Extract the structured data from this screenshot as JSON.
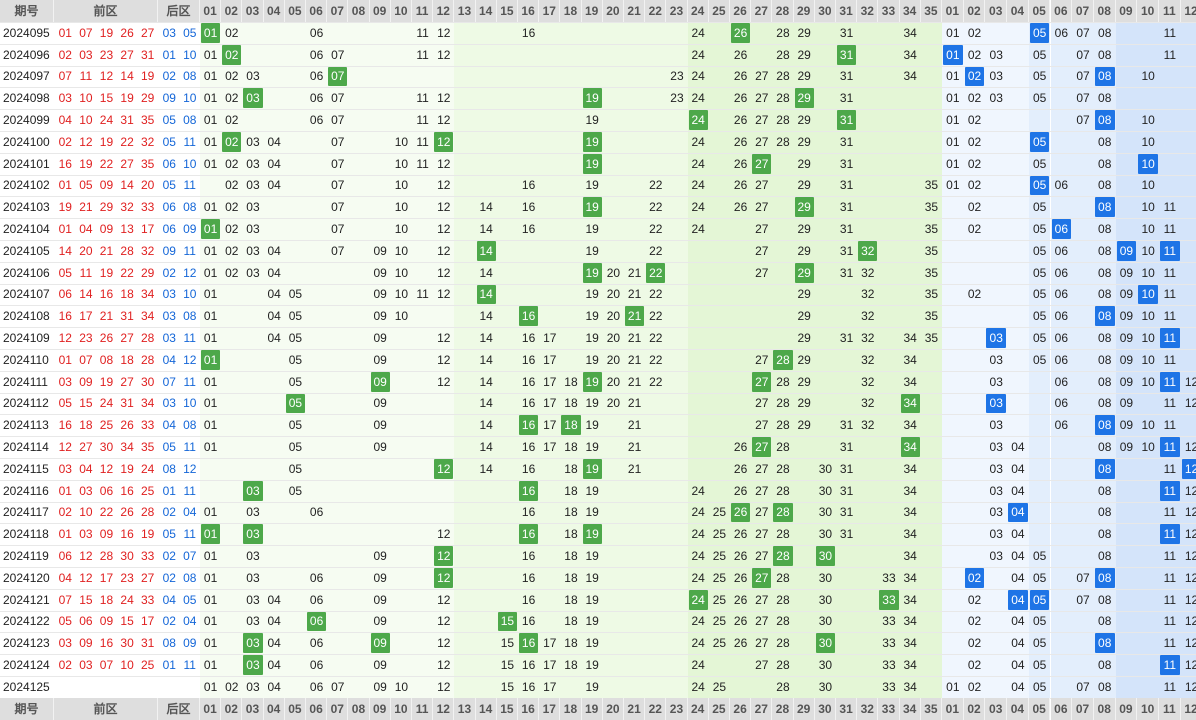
{
  "headers": {
    "period": "期号",
    "front": "前区",
    "back": "后区",
    "front_cols": [
      "01",
      "02",
      "03",
      "04",
      "05",
      "06",
      "07",
      "08",
      "09",
      "10",
      "11",
      "12",
      "13",
      "14",
      "15",
      "16",
      "17",
      "18",
      "19",
      "20",
      "21",
      "22",
      "23",
      "24",
      "25",
      "26",
      "27",
      "28",
      "29",
      "30",
      "31",
      "32",
      "33",
      "34",
      "35"
    ],
    "back_cols": [
      "01",
      "02",
      "03",
      "04",
      "05",
      "06",
      "07",
      "08",
      "09",
      "10",
      "11",
      "12"
    ]
  },
  "colors": {
    "green_mark": "#4da84a",
    "blue_mark": "#1e74e6",
    "front_ball": "#e02020",
    "back_ball": "#1466d8"
  },
  "rows": [
    {
      "period": "2024095",
      "front": [
        "01",
        "07",
        "19",
        "26",
        "27"
      ],
      "back": [
        "03",
        "05"
      ],
      "fz": [
        "01",
        "02",
        "06",
        "11",
        "12",
        "16",
        "24",
        "26",
        "28",
        "29",
        "31",
        "34"
      ],
      "fm": [
        "01",
        "26"
      ],
      "bz": [
        "01",
        "02",
        "05",
        "06",
        "07",
        "08",
        "11"
      ],
      "bm": [
        "05"
      ]
    },
    {
      "period": "2024096",
      "front": [
        "02",
        "03",
        "23",
        "27",
        "31"
      ],
      "back": [
        "01",
        "10"
      ],
      "fz": [
        "01",
        "02",
        "06",
        "07",
        "11",
        "12",
        "24",
        "26",
        "28",
        "29",
        "31",
        "34"
      ],
      "fm": [
        "02",
        "31"
      ],
      "bz": [
        "01",
        "02",
        "03",
        "05",
        "07",
        "08",
        "11"
      ],
      "bm": [
        "01"
      ]
    },
    {
      "period": "2024097",
      "front": [
        "07",
        "11",
        "12",
        "14",
        "19"
      ],
      "back": [
        "02",
        "08"
      ],
      "fz": [
        "01",
        "02",
        "03",
        "06",
        "07",
        "23",
        "24",
        "26",
        "27",
        "28",
        "29",
        "31",
        "34"
      ],
      "fm": [
        "07"
      ],
      "bz": [
        "01",
        "02",
        "03",
        "05",
        "07",
        "08",
        "10"
      ],
      "bm": [
        "02",
        "08"
      ]
    },
    {
      "period": "2024098",
      "front": [
        "03",
        "10",
        "15",
        "19",
        "29"
      ],
      "back": [
        "09",
        "10"
      ],
      "fz": [
        "01",
        "02",
        "03",
        "06",
        "07",
        "11",
        "12",
        "19",
        "23",
        "24",
        "26",
        "27",
        "28",
        "29",
        "31"
      ],
      "fm": [
        "03",
        "19",
        "29"
      ],
      "bz": [
        "01",
        "02",
        "03",
        "05",
        "07",
        "08"
      ],
      "bm": []
    },
    {
      "period": "2024099",
      "front": [
        "04",
        "10",
        "24",
        "31",
        "35"
      ],
      "back": [
        "05",
        "08"
      ],
      "fz": [
        "01",
        "02",
        "06",
        "07",
        "11",
        "12",
        "19",
        "24",
        "26",
        "27",
        "28",
        "29",
        "31"
      ],
      "fm": [
        "24",
        "31"
      ],
      "bz": [
        "01",
        "02",
        "07",
        "08",
        "10"
      ],
      "bm": [
        "08"
      ]
    },
    {
      "period": "2024100",
      "front": [
        "02",
        "12",
        "19",
        "22",
        "32"
      ],
      "back": [
        "05",
        "11"
      ],
      "fz": [
        "01",
        "02",
        "03",
        "04",
        "07",
        "10",
        "11",
        "12",
        "19",
        "24",
        "26",
        "27",
        "28",
        "29",
        "31"
      ],
      "fm": [
        "02",
        "12",
        "19"
      ],
      "bz": [
        "01",
        "02",
        "05",
        "08",
        "10"
      ],
      "bm": [
        "05"
      ]
    },
    {
      "period": "2024101",
      "front": [
        "16",
        "19",
        "22",
        "27",
        "35"
      ],
      "back": [
        "06",
        "10"
      ],
      "fz": [
        "01",
        "02",
        "03",
        "04",
        "07",
        "10",
        "11",
        "12",
        "19",
        "24",
        "26",
        "27",
        "29",
        "31"
      ],
      "fm": [
        "19",
        "27"
      ],
      "bz": [
        "01",
        "02",
        "05",
        "08",
        "10"
      ],
      "bm": [
        "10"
      ]
    },
    {
      "period": "2024102",
      "front": [
        "01",
        "05",
        "09",
        "14",
        "20"
      ],
      "back": [
        "05",
        "11"
      ],
      "fz": [
        "02",
        "03",
        "04",
        "07",
        "10",
        "12",
        "16",
        "19",
        "22",
        "24",
        "26",
        "27",
        "29",
        "31",
        "35"
      ],
      "fm": [],
      "bz": [
        "01",
        "02",
        "05",
        "06",
        "08",
        "10"
      ],
      "bm": [
        "05"
      ]
    },
    {
      "period": "2024103",
      "front": [
        "19",
        "21",
        "29",
        "32",
        "33"
      ],
      "back": [
        "06",
        "08"
      ],
      "fz": [
        "01",
        "02",
        "03",
        "07",
        "10",
        "12",
        "14",
        "16",
        "19",
        "22",
        "24",
        "26",
        "27",
        "29",
        "31",
        "35"
      ],
      "fm": [
        "19",
        "29"
      ],
      "bz": [
        "02",
        "05",
        "08",
        "10",
        "11"
      ],
      "bm": [
        "08"
      ]
    },
    {
      "period": "2024104",
      "front": [
        "01",
        "04",
        "09",
        "13",
        "17"
      ],
      "back": [
        "06",
        "09"
      ],
      "fz": [
        "01",
        "02",
        "03",
        "07",
        "10",
        "12",
        "14",
        "16",
        "19",
        "22",
        "24",
        "27",
        "29",
        "31",
        "35"
      ],
      "fm": [
        "01"
      ],
      "bz": [
        "02",
        "05",
        "06",
        "08",
        "10",
        "11"
      ],
      "bm": [
        "06"
      ]
    },
    {
      "period": "2024105",
      "front": [
        "14",
        "20",
        "21",
        "28",
        "32"
      ],
      "back": [
        "09",
        "11"
      ],
      "fz": [
        "01",
        "02",
        "03",
        "04",
        "07",
        "09",
        "10",
        "12",
        "14",
        "19",
        "22",
        "27",
        "29",
        "31",
        "32",
        "35"
      ],
      "fm": [
        "14",
        "32"
      ],
      "bz": [
        "05",
        "06",
        "08",
        "09",
        "10",
        "11"
      ],
      "bm": [
        "09",
        "11"
      ]
    },
    {
      "period": "2024106",
      "front": [
        "05",
        "11",
        "19",
        "22",
        "29"
      ],
      "back": [
        "02",
        "12"
      ],
      "fz": [
        "01",
        "02",
        "03",
        "04",
        "09",
        "10",
        "12",
        "14",
        "19",
        "20",
        "21",
        "22",
        "27",
        "29",
        "31",
        "32",
        "35"
      ],
      "fm": [
        "19",
        "22",
        "29"
      ],
      "bz": [
        "05",
        "06",
        "08",
        "09",
        "10",
        "11"
      ],
      "bm": []
    },
    {
      "period": "2024107",
      "front": [
        "06",
        "14",
        "16",
        "18",
        "34"
      ],
      "back": [
        "03",
        "10"
      ],
      "fz": [
        "01",
        "04",
        "05",
        "09",
        "10",
        "11",
        "12",
        "14",
        "19",
        "20",
        "21",
        "22",
        "29",
        "32",
        "35"
      ],
      "fm": [
        "14"
      ],
      "bz": [
        "02",
        "05",
        "06",
        "08",
        "09",
        "10",
        "11"
      ],
      "bm": [
        "10"
      ]
    },
    {
      "period": "2024108",
      "front": [
        "16",
        "17",
        "21",
        "31",
        "34"
      ],
      "back": [
        "03",
        "08"
      ],
      "fz": [
        "01",
        "04",
        "05",
        "09",
        "10",
        "14",
        "16",
        "19",
        "20",
        "21",
        "22",
        "29",
        "32",
        "35"
      ],
      "fm": [
        "16",
        "21"
      ],
      "bz": [
        "05",
        "06",
        "08",
        "09",
        "10",
        "11"
      ],
      "bm": [
        "08"
      ]
    },
    {
      "period": "2024109",
      "front": [
        "12",
        "23",
        "26",
        "27",
        "28"
      ],
      "back": [
        "03",
        "11"
      ],
      "fz": [
        "01",
        "04",
        "05",
        "09",
        "12",
        "14",
        "16",
        "17",
        "19",
        "20",
        "21",
        "22",
        "29",
        "31",
        "32",
        "34",
        "35"
      ],
      "fm": [],
      "bz": [
        "03",
        "05",
        "06",
        "08",
        "09",
        "10",
        "11"
      ],
      "bm": [
        "03",
        "11"
      ]
    },
    {
      "period": "2024110",
      "front": [
        "01",
        "07",
        "08",
        "18",
        "28"
      ],
      "back": [
        "04",
        "12"
      ],
      "fz": [
        "01",
        "05",
        "09",
        "12",
        "14",
        "16",
        "17",
        "19",
        "20",
        "21",
        "22",
        "27",
        "28",
        "29",
        "32",
        "34"
      ],
      "fm": [
        "01",
        "28"
      ],
      "bz": [
        "03",
        "05",
        "06",
        "08",
        "09",
        "10",
        "11"
      ],
      "bm": []
    },
    {
      "period": "2024111",
      "front": [
        "03",
        "09",
        "19",
        "27",
        "30"
      ],
      "back": [
        "07",
        "11"
      ],
      "fz": [
        "01",
        "05",
        "09",
        "12",
        "14",
        "16",
        "17",
        "18",
        "19",
        "20",
        "21",
        "22",
        "27",
        "28",
        "29",
        "32",
        "34"
      ],
      "fm": [
        "09",
        "19",
        "27"
      ],
      "bz": [
        "03",
        "06",
        "08",
        "09",
        "10",
        "11",
        "12"
      ],
      "bm": [
        "11"
      ]
    },
    {
      "period": "2024112",
      "front": [
        "05",
        "15",
        "24",
        "31",
        "34"
      ],
      "back": [
        "03",
        "10"
      ],
      "fz": [
        "01",
        "05",
        "09",
        "14",
        "16",
        "17",
        "18",
        "19",
        "20",
        "21",
        "27",
        "28",
        "29",
        "32",
        "34"
      ],
      "fm": [
        "05",
        "34"
      ],
      "bz": [
        "03",
        "06",
        "08",
        "09",
        "11",
        "12"
      ],
      "bm": [
        "03"
      ]
    },
    {
      "period": "2024113",
      "front": [
        "16",
        "18",
        "25",
        "26",
        "33"
      ],
      "back": [
        "04",
        "08"
      ],
      "fz": [
        "01",
        "05",
        "09",
        "14",
        "16",
        "17",
        "18",
        "19",
        "21",
        "27",
        "28",
        "29",
        "31",
        "32",
        "34"
      ],
      "fm": [
        "16",
        "18"
      ],
      "bz": [
        "03",
        "06",
        "08",
        "09",
        "10",
        "11"
      ],
      "bm": [
        "08"
      ]
    },
    {
      "period": "2024114",
      "front": [
        "12",
        "27",
        "30",
        "34",
        "35"
      ],
      "back": [
        "05",
        "11"
      ],
      "fz": [
        "01",
        "05",
        "09",
        "14",
        "16",
        "17",
        "18",
        "19",
        "21",
        "26",
        "27",
        "28",
        "31",
        "34"
      ],
      "fm": [
        "27",
        "34"
      ],
      "bz": [
        "03",
        "04",
        "08",
        "09",
        "10",
        "11",
        "12"
      ],
      "bm": [
        "11"
      ]
    },
    {
      "period": "2024115",
      "front": [
        "03",
        "04",
        "12",
        "19",
        "24"
      ],
      "back": [
        "08",
        "12"
      ],
      "fz": [
        "05",
        "12",
        "14",
        "16",
        "18",
        "19",
        "21",
        "26",
        "27",
        "28",
        "30",
        "31",
        "34"
      ],
      "fm": [
        "12",
        "19"
      ],
      "bz": [
        "03",
        "04",
        "08",
        "11",
        "12"
      ],
      "bm": [
        "08",
        "12"
      ]
    },
    {
      "period": "2024116",
      "front": [
        "01",
        "03",
        "06",
        "16",
        "25"
      ],
      "back": [
        "01",
        "11"
      ],
      "fz": [
        "03",
        "05",
        "16",
        "18",
        "19",
        "24",
        "26",
        "27",
        "28",
        "30",
        "31",
        "34"
      ],
      "fm": [
        "03",
        "16"
      ],
      "bz": [
        "03",
        "04",
        "08",
        "11",
        "12"
      ],
      "bm": [
        "11"
      ]
    },
    {
      "period": "2024117",
      "front": [
        "02",
        "10",
        "22",
        "26",
        "28"
      ],
      "back": [
        "02",
        "04"
      ],
      "fz": [
        "01",
        "03",
        "06",
        "16",
        "18",
        "19",
        "24",
        "25",
        "26",
        "27",
        "28",
        "30",
        "31",
        "34"
      ],
      "fm": [
        "26",
        "28"
      ],
      "bz": [
        "03",
        "04",
        "08",
        "11",
        "12"
      ],
      "bm": [
        "04"
      ]
    },
    {
      "period": "2024118",
      "front": [
        "01",
        "03",
        "09",
        "16",
        "19"
      ],
      "back": [
        "05",
        "11"
      ],
      "fz": [
        "01",
        "03",
        "12",
        "16",
        "18",
        "19",
        "24",
        "25",
        "26",
        "27",
        "28",
        "30",
        "31",
        "34"
      ],
      "fm": [
        "01",
        "03",
        "16",
        "19"
      ],
      "bz": [
        "03",
        "04",
        "08",
        "11",
        "12"
      ],
      "bm": [
        "11"
      ]
    },
    {
      "period": "2024119",
      "front": [
        "06",
        "12",
        "28",
        "30",
        "33"
      ],
      "back": [
        "02",
        "07"
      ],
      "fz": [
        "01",
        "03",
        "09",
        "12",
        "16",
        "18",
        "19",
        "24",
        "25",
        "26",
        "27",
        "28",
        "30",
        "34"
      ],
      "fm": [
        "12",
        "28",
        "30"
      ],
      "bz": [
        "03",
        "04",
        "05",
        "08",
        "11",
        "12"
      ],
      "bm": []
    },
    {
      "period": "2024120",
      "front": [
        "04",
        "12",
        "17",
        "23",
        "27"
      ],
      "back": [
        "02",
        "08"
      ],
      "fz": [
        "01",
        "03",
        "06",
        "09",
        "12",
        "16",
        "18",
        "19",
        "24",
        "25",
        "26",
        "27",
        "28",
        "30",
        "33",
        "34"
      ],
      "fm": [
        "12",
        "27"
      ],
      "bz": [
        "02",
        "04",
        "05",
        "07",
        "08",
        "11",
        "12"
      ],
      "bm": [
        "02",
        "08"
      ]
    },
    {
      "period": "2024121",
      "front": [
        "07",
        "15",
        "18",
        "24",
        "33"
      ],
      "back": [
        "04",
        "05"
      ],
      "fz": [
        "01",
        "03",
        "04",
        "06",
        "09",
        "12",
        "16",
        "18",
        "19",
        "24",
        "25",
        "26",
        "27",
        "28",
        "30",
        "33",
        "34"
      ],
      "fm": [
        "24",
        "33"
      ],
      "bz": [
        "02",
        "04",
        "05",
        "07",
        "08",
        "11",
        "12"
      ],
      "bm": [
        "04",
        "05"
      ]
    },
    {
      "period": "2024122",
      "front": [
        "05",
        "06",
        "09",
        "15",
        "17"
      ],
      "back": [
        "02",
        "04"
      ],
      "fz": [
        "01",
        "03",
        "04",
        "06",
        "09",
        "12",
        "15",
        "16",
        "18",
        "19",
        "24",
        "25",
        "26",
        "27",
        "28",
        "30",
        "33",
        "34"
      ],
      "fm": [
        "06",
        "15"
      ],
      "bz": [
        "02",
        "04",
        "05",
        "08",
        "11",
        "12"
      ],
      "bm": []
    },
    {
      "period": "2024123",
      "front": [
        "03",
        "09",
        "16",
        "30",
        "31"
      ],
      "back": [
        "08",
        "09"
      ],
      "fz": [
        "01",
        "03",
        "04",
        "06",
        "09",
        "12",
        "15",
        "16",
        "17",
        "18",
        "19",
        "24",
        "25",
        "26",
        "27",
        "28",
        "30",
        "33",
        "34"
      ],
      "fm": [
        "03",
        "09",
        "16",
        "30"
      ],
      "bz": [
        "02",
        "04",
        "05",
        "08",
        "11",
        "12"
      ],
      "bm": [
        "08"
      ]
    },
    {
      "period": "2024124",
      "front": [
        "02",
        "03",
        "07",
        "10",
        "25"
      ],
      "back": [
        "01",
        "11"
      ],
      "fz": [
        "01",
        "03",
        "04",
        "06",
        "09",
        "12",
        "15",
        "16",
        "17",
        "18",
        "19",
        "24",
        "27",
        "28",
        "30",
        "33",
        "34"
      ],
      "fm": [
        "03"
      ],
      "bz": [
        "02",
        "04",
        "05",
        "08",
        "11",
        "12"
      ],
      "bm": [
        "11"
      ]
    },
    {
      "period": "2024125",
      "front": [],
      "back": [],
      "fz": [
        "01",
        "02",
        "03",
        "04",
        "06",
        "07",
        "09",
        "10",
        "12",
        "15",
        "16",
        "17",
        "19",
        "24",
        "25",
        "28",
        "30",
        "33",
        "34"
      ],
      "fm": [],
      "bz": [
        "01",
        "02",
        "04",
        "05",
        "07",
        "08",
        "11",
        "12"
      ],
      "bm": []
    }
  ]
}
